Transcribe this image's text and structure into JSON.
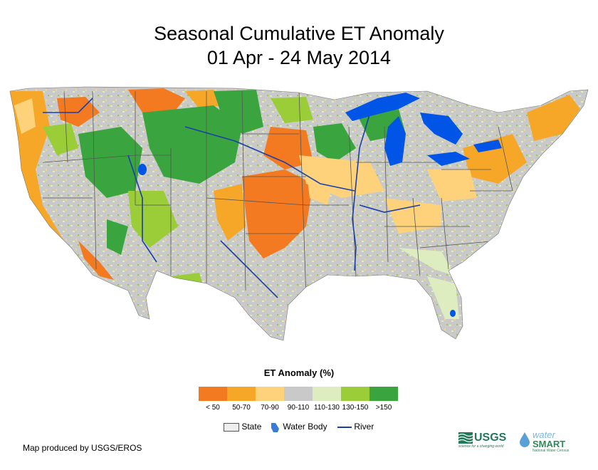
{
  "title": {
    "line1": "Seasonal Cumulative ET Anomaly",
    "line2": "01 Apr - 24 May 2014"
  },
  "legend": {
    "title": "ET Anomaly (%)",
    "classes": [
      {
        "label": "< 50",
        "color": "#f37a20"
      },
      {
        "label": "50-70",
        "color": "#f7a728"
      },
      {
        "label": "70-90",
        "color": "#fdd27a"
      },
      {
        "label": "90-110",
        "color": "#c9c9c9"
      },
      {
        "label": "110-130",
        "color": "#ddedc0"
      },
      {
        "label": "130-150",
        "color": "#9acd38"
      },
      {
        "label": ">150",
        "color": "#3aa53e"
      }
    ],
    "key": {
      "state": "State",
      "water": "Water Body",
      "river": "River"
    }
  },
  "colors": {
    "water": "#0055e6",
    "river": "#1a3fa8",
    "state_line": "#555555"
  },
  "credit": "Map produced by USGS/EROS",
  "logos": {
    "usgs": "USGS",
    "usgs_tagline": "science for a changing world",
    "watersmart_top": "water",
    "watersmart_bottom": "SMART",
    "watersmart_tagline": "National Water Census"
  }
}
